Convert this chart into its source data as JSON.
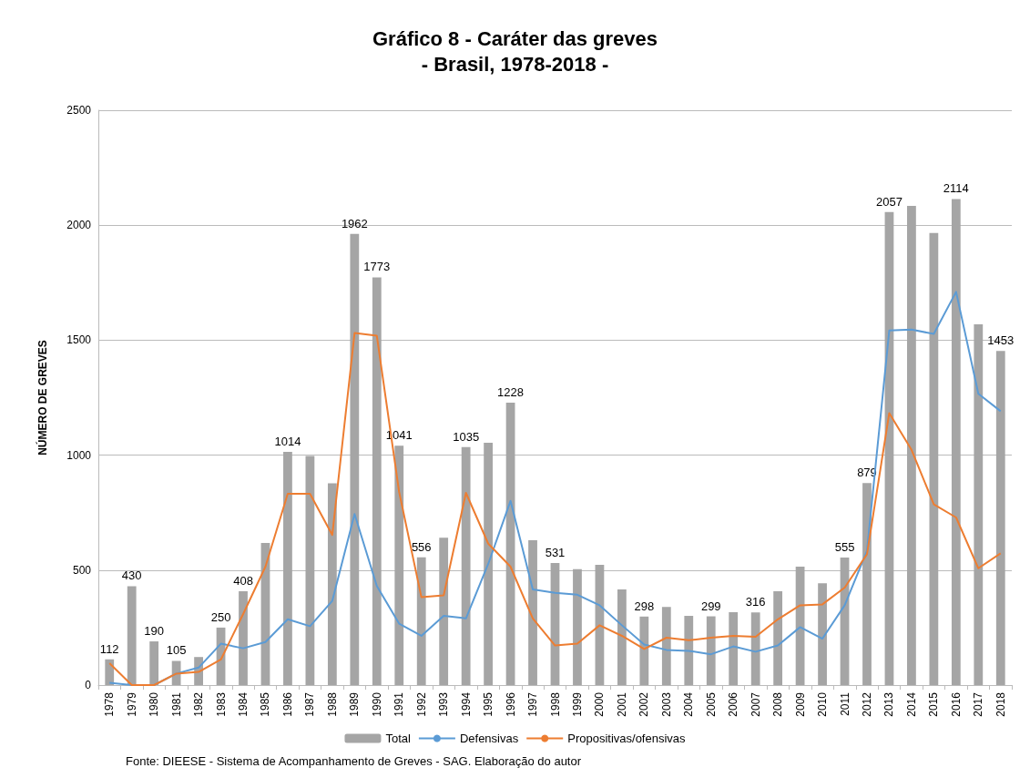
{
  "chart_data": {
    "type": "bar",
    "title": "Gráfico 8 - Caráter das greves",
    "subtitle": "- Brasil, 1978-2018 -",
    "ylabel": "NÚMERO DE GREVES",
    "categories": [
      "1978",
      "1979",
      "1980",
      "1981",
      "1982",
      "1983",
      "1984",
      "1985",
      "1986",
      "1987",
      "1988",
      "1989",
      "1990",
      "1991",
      "1992",
      "1993",
      "1994",
      "1995",
      "1996",
      "1997",
      "1998",
      "1999",
      "2000",
      "2001",
      "2002",
      "2003",
      "2004",
      "2005",
      "2006",
      "2007",
      "2008",
      "2009",
      "2010",
      "2011",
      "2012",
      "2013",
      "2014",
      "2015",
      "2016",
      "2017",
      "2018"
    ],
    "series": [
      {
        "name": "Total",
        "color": "#a5a5a5",
        "values": [
          112,
          430,
          190,
          105,
          122,
          250,
          408,
          618,
          1014,
          996,
          878,
          1962,
          1773,
          1041,
          556,
          641,
          1035,
          1054,
          1228,
          630,
          531,
          504,
          523,
          416,
          298,
          340,
          301,
          299,
          317,
          316,
          408,
          515,
          443,
          555,
          879,
          2057,
          2084,
          1966,
          2114,
          1569,
          1453
        ],
        "value_labels": [
          "112",
          "430",
          "190",
          "105",
          null,
          "250",
          "408",
          null,
          "1014",
          null,
          null,
          "1962",
          "1773",
          "1041",
          "556",
          null,
          "1035",
          null,
          "1228",
          null,
          "531",
          null,
          null,
          null,
          "298",
          null,
          null,
          "299",
          null,
          "316",
          null,
          null,
          null,
          "555",
          "879",
          "2057",
          null,
          null,
          "2114",
          null,
          "1453"
        ]
      },
      {
        "name": "Defensivas",
        "type": "line",
        "color": "#5b9bd5",
        "values": [
          10,
          0,
          0,
          50,
          76,
          180,
          160,
          187,
          286,
          256,
          366,
          744,
          431,
          267,
          214,
          301,
          290,
          527,
          801,
          416,
          401,
          393,
          347,
          260,
          176,
          153,
          149,
          134,
          168,
          145,
          172,
          252,
          202,
          347,
          584,
          1542,
          1546,
          1527,
          1710,
          1267,
          1191
        ]
      },
      {
        "name": "Propositivas/ofensivas",
        "type": "line",
        "color": "#ed7d31",
        "values": [
          95,
          0,
          0,
          50,
          57,
          111,
          309,
          515,
          832,
          832,
          653,
          1531,
          1519,
          840,
          382,
          390,
          836,
          615,
          515,
          290,
          172,
          180,
          260,
          214,
          157,
          206,
          195,
          206,
          214,
          210,
          286,
          347,
          351,
          424,
          569,
          1183,
          1023,
          786,
          729,
          508,
          573
        ]
      }
    ],
    "ylim": [
      0,
      2500
    ],
    "yticks": [
      0,
      500,
      1000,
      1500,
      2000,
      2500
    ],
    "grid": "y",
    "legend": "bottom",
    "marker": "none",
    "line_style": "solid",
    "annotations": [
      "Fonte: DIEESE - Sistema de Acompanhamento de Greves - SAG. Elaboração do autor"
    ]
  }
}
